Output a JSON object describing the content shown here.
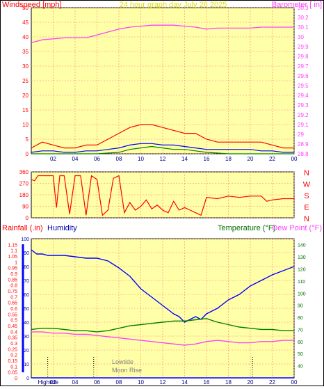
{
  "colors": {
    "plot_bg": "#ffffa8",
    "grid": "#ff8080",
    "red": "#ff0000",
    "blue": "#0000ff",
    "green": "#008000",
    "magenta": "#ff40ff",
    "yellow_text": "#e0e000",
    "navy": "#0000aa",
    "dark_green": "#007000",
    "gray": "#808080"
  },
  "x_ticks": [
    "02",
    "04",
    "06",
    "08",
    "10",
    "12",
    "14",
    "16",
    "18",
    "20",
    "22",
    "00"
  ],
  "chart_data": [
    {
      "type": "line",
      "title": "24 hour graph day   July 26 2025",
      "ylabel_left": "Windspeed [mph]",
      "ylabel_right": "Barometer [ in]",
      "x_range_hours": [
        0,
        24
      ],
      "ylim_left": [
        0,
        50
      ],
      "ylim_right": [
        28.8,
        30.3
      ],
      "yticks_left": [
        "0",
        "5",
        "10",
        "15",
        "20",
        "25",
        "30",
        "35",
        "40",
        "45",
        "50"
      ],
      "yticks_right": [
        "28.8",
        "28.9",
        "29",
        "29.1",
        "29.2",
        "29.3",
        "29.4",
        "29.5",
        "29.6",
        "29.7",
        "29.8",
        "29.9",
        "30",
        "30.1",
        "30.2",
        "30.3"
      ],
      "series": [
        {
          "series_key": "wind_gust",
          "color": "red",
          "axis": "left",
          "x": [
            0.0,
            1.0,
            2.0,
            3.0,
            4.0,
            5.0,
            6.0,
            7.0,
            8.0,
            9.0,
            10.0,
            11.0,
            12.0,
            13.0,
            14.0,
            15.0,
            16.0,
            17.0,
            18.0,
            19.0,
            20.0,
            21.0,
            22.0,
            23.0,
            24.0
          ],
          "y": [
            2,
            4,
            3,
            2,
            2,
            3,
            3,
            5,
            7,
            9,
            10,
            10,
            9,
            8,
            7,
            7,
            5,
            4,
            4,
            4,
            4,
            4,
            3,
            2,
            2
          ]
        },
        {
          "series_key": "wind_avg",
          "color": "blue",
          "axis": "left",
          "x": [
            0.0,
            1.0,
            2.0,
            3.0,
            4.0,
            5.0,
            6.0,
            7.0,
            8.0,
            9.0,
            10.0,
            11.0,
            12.0,
            13.0,
            14.0,
            15.0,
            16.0,
            17.0,
            18.0,
            19.0,
            20.0,
            21.0,
            22.0,
            23.0,
            24.0
          ],
          "y": [
            0.5,
            1,
            1,
            0.5,
            0.5,
            1,
            1,
            1.5,
            2,
            3,
            3.5,
            3.5,
            3,
            3,
            2.5,
            2,
            1.5,
            1.5,
            1.5,
            1.5,
            1.5,
            1,
            1,
            0.5,
            0.5
          ]
        },
        {
          "series_key": "wind_low",
          "color": "green",
          "axis": "left",
          "x": [
            0.0,
            2.0,
            4.0,
            6.0,
            8.0,
            9.0,
            10.0,
            11.0,
            12.0,
            13.0,
            14.0,
            15.0,
            16.0,
            18.0,
            20.0,
            22.0,
            24.0
          ],
          "y": [
            0,
            0,
            0,
            0,
            0.5,
            1.5,
            2,
            2.5,
            2,
            1.5,
            1.5,
            1,
            0.5,
            0,
            0,
            0,
            0
          ]
        },
        {
          "series_key": "barometer",
          "color": "magenta",
          "axis": "right",
          "x": [
            0.0,
            1.0,
            2.0,
            3.0,
            4.0,
            5.0,
            6.0,
            7.0,
            8.0,
            9.0,
            10.0,
            11.0,
            12.0,
            13.0,
            14.0,
            15.0,
            16.0,
            17.0,
            18.0,
            19.0,
            20.0,
            21.0,
            22.0,
            23.0,
            24.0
          ],
          "y": [
            29.94,
            29.97,
            29.98,
            29.99,
            29.99,
            29.99,
            30.02,
            30.05,
            30.08,
            30.1,
            30.11,
            30.12,
            30.12,
            30.12,
            30.11,
            30.1,
            30.08,
            30.09,
            30.09,
            30.09,
            30.09,
            30.1,
            30.1,
            30.1,
            30.1
          ]
        }
      ]
    },
    {
      "type": "line",
      "ylabel_right_compass": [
        "N",
        "W",
        "S",
        "E",
        "N"
      ],
      "ylim_left": [
        0,
        360
      ],
      "yticks_left": [
        "0",
        "90",
        "180",
        "270",
        "360"
      ],
      "series": [
        {
          "series_key": "wind_direction",
          "color": "red",
          "x": [
            0.0,
            0.3,
            0.6,
            1.0,
            1.5,
            2.0,
            2.3,
            2.6,
            3.0,
            3.5,
            4.0,
            4.5,
            5.0,
            5.5,
            6.0,
            6.5,
            7.0,
            7.5,
            8.0,
            8.5,
            9.0,
            9.5,
            10.0,
            10.5,
            11.0,
            11.5,
            12.0,
            12.5,
            13.0,
            13.5,
            14.0,
            14.5,
            15.0,
            15.5,
            16.0,
            17.0,
            18.0,
            19.0,
            20.0,
            21.0,
            21.5,
            22.0,
            23.0,
            24.0
          ],
          "y": [
            300,
            290,
            330,
            330,
            330,
            330,
            80,
            330,
            330,
            30,
            330,
            330,
            20,
            330,
            300,
            20,
            60,
            310,
            330,
            40,
            120,
            60,
            90,
            140,
            70,
            100,
            60,
            40,
            130,
            60,
            80,
            60,
            40,
            20,
            160,
            150,
            170,
            160,
            170,
            170,
            130,
            140,
            150,
            150
          ]
        }
      ]
    },
    {
      "type": "line",
      "ylabel_left_1": "Rainfall (.in)",
      "ylabel_left_2": "Humidity",
      "ylabel_right_1": "Temperature (°F)",
      "ylabel_right_2": "Dew Point (°F)",
      "ylim_rain": [
        0,
        1.2
      ],
      "yticks_rain": [
        "0",
        "0.05",
        "0.1",
        "0.15",
        "0.2",
        "0.25",
        "0.3",
        "0.35",
        "0.4",
        "0.45",
        "0.5",
        "0.55",
        "0.6",
        "0.65",
        "0.7",
        "0.75",
        "0.8",
        "0.85",
        "0.9",
        "0.95",
        "1",
        "1.05",
        "1.1",
        "1.15"
      ],
      "ylim_humidity": [
        0,
        100
      ],
      "yticks_humidity": [
        "0",
        "10",
        "20",
        "30",
        "40",
        "50",
        "60",
        "70",
        "80",
        "90",
        "100"
      ],
      "ylim_temp": [
        30,
        145
      ],
      "yticks_temp": [
        "40",
        "50",
        "60",
        "70",
        "80",
        "90",
        "100",
        "110",
        "120",
        "130",
        "140"
      ],
      "series": [
        {
          "series_key": "rainfall",
          "color": "blue",
          "x": [
            0.0,
            24.0
          ],
          "y": [
            0,
            0
          ]
        },
        {
          "series_key": "humidity",
          "color": "blue",
          "x": [
            0.0,
            0.5,
            1.0,
            1.5,
            2.0,
            3.0,
            4.0,
            5.0,
            5.5,
            6.0,
            7.0,
            8.0,
            9.0,
            10.0,
            11.0,
            12.0,
            13.0,
            13.5,
            14.0,
            14.5,
            15.0,
            15.5,
            16.0,
            17.0,
            18.0,
            19.0,
            20.0,
            21.0,
            22.0,
            23.0,
            24.0
          ],
          "y": [
            92,
            89,
            89,
            88,
            88,
            88,
            87,
            86,
            86,
            86,
            84,
            79,
            73,
            64,
            58,
            52,
            46,
            44,
            40,
            42,
            44,
            42,
            46,
            50,
            56,
            60,
            66,
            70,
            74,
            77,
            80
          ]
        },
        {
          "series_key": "temperature",
          "color": "green",
          "x": [
            0.0,
            1.0,
            2.0,
            3.0,
            4.0,
            5.0,
            6.0,
            7.0,
            8.0,
            9.0,
            10.0,
            11.0,
            12.0,
            13.0,
            14.0,
            15.0,
            16.0,
            17.0,
            18.0,
            19.0,
            20.0,
            21.0,
            22.0,
            23.0,
            24.0
          ],
          "y": [
            70,
            71,
            71,
            70,
            69,
            69,
            68,
            69,
            71,
            73,
            74,
            75,
            76,
            77,
            77,
            78,
            79,
            76,
            74,
            72,
            71,
            70,
            70,
            69,
            69
          ]
        },
        {
          "series_key": "dew_point",
          "color": "magenta",
          "x": [
            0.0,
            1.0,
            2.0,
            3.0,
            4.0,
            5.0,
            6.0,
            7.0,
            8.0,
            9.0,
            10.0,
            11.0,
            12.0,
            13.0,
            14.0,
            15.0,
            16.0,
            17.0,
            18.0,
            19.0,
            20.0,
            21.0,
            22.0,
            23.0,
            24.0
          ],
          "y": [
            68,
            68,
            67,
            67,
            66,
            66,
            65,
            64,
            63,
            62,
            61,
            60,
            59,
            58,
            57,
            58,
            60,
            61,
            60,
            59,
            59,
            60,
            60,
            61,
            61
          ]
        }
      ],
      "event_markers": [
        {
          "hour": 1.5,
          "label": "Hightide"
        },
        {
          "hour": 5.7,
          "label": ""
        },
        {
          "hour": 20.2,
          "label": ""
        }
      ],
      "annotations": [
        "Lowtide",
        "Moon Rise"
      ]
    }
  ]
}
